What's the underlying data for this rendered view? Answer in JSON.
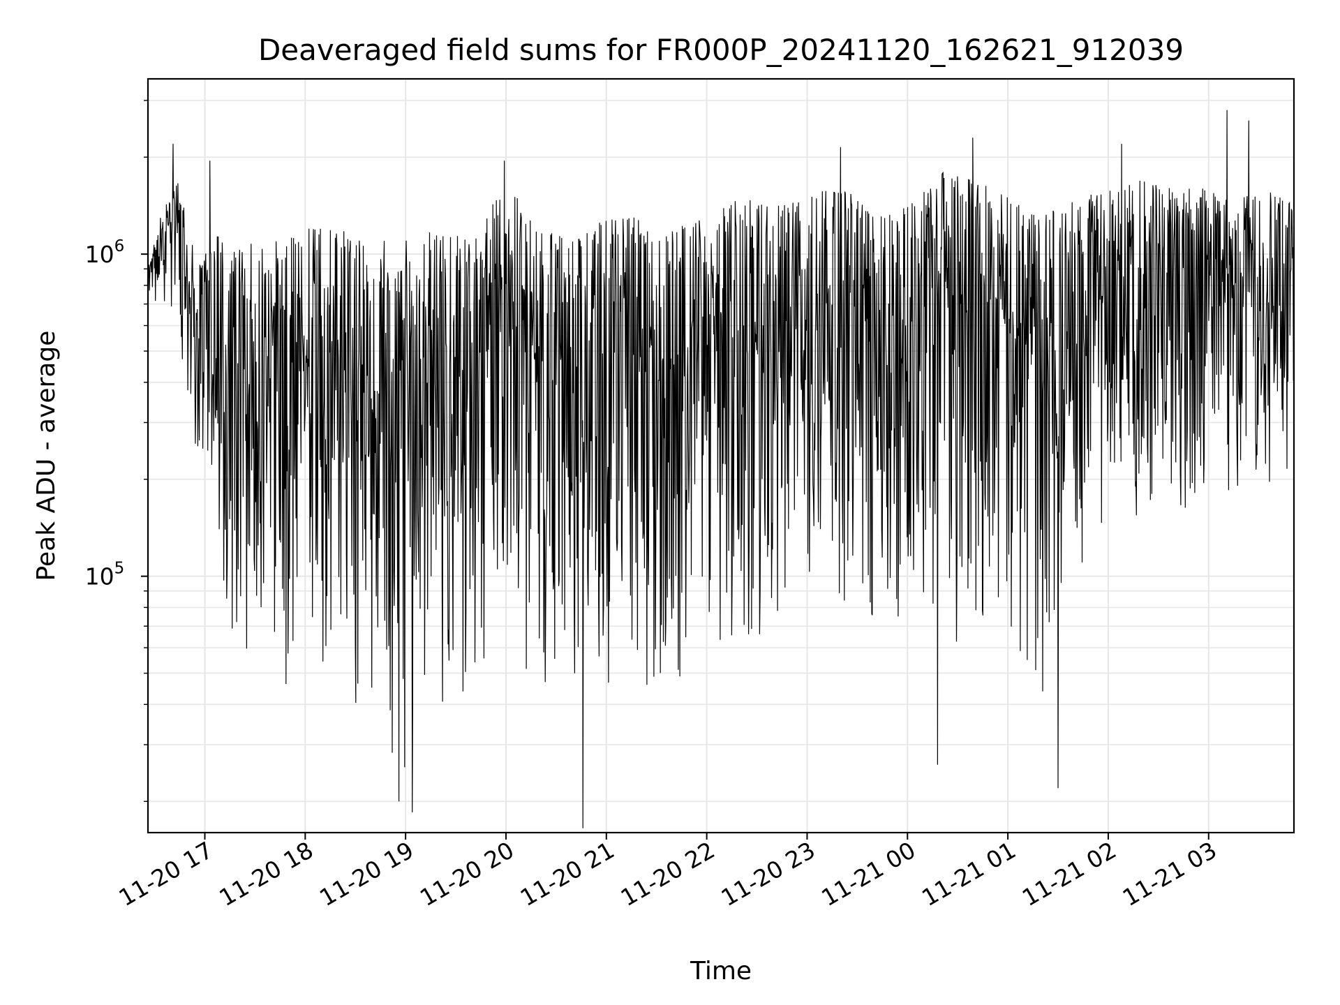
{
  "chart_data": {
    "type": "line",
    "title": "Deaveraged field sums for FR000P_20241120_162621_912039",
    "xlabel": "Time",
    "ylabel": "Peak ADU - average",
    "yscale": "log",
    "ylim": [
      16000,
      3500000
    ],
    "xlim": [
      "2024-11-20 16:26",
      "2024-11-21 03:51"
    ],
    "grid": true,
    "line_color": "#000000",
    "grid_color": "#e6e6e6",
    "x_ticks": [
      {
        "t": "2024-11-20 17:00",
        "label": "11-20 17"
      },
      {
        "t": "2024-11-20 18:00",
        "label": "11-20 18"
      },
      {
        "t": "2024-11-20 19:00",
        "label": "11-20 19"
      },
      {
        "t": "2024-11-20 20:00",
        "label": "11-20 20"
      },
      {
        "t": "2024-11-20 21:00",
        "label": "11-20 21"
      },
      {
        "t": "2024-11-20 22:00",
        "label": "11-20 22"
      },
      {
        "t": "2024-11-20 23:00",
        "label": "11-20 23"
      },
      {
        "t": "2024-11-21 00:00",
        "label": "11-21 00"
      },
      {
        "t": "2024-11-21 01:00",
        "label": "11-21 01"
      },
      {
        "t": "2024-11-21 02:00",
        "label": "11-21 02"
      },
      {
        "t": "2024-11-21 03:00",
        "label": "11-21 03"
      }
    ],
    "y_ticks": [
      {
        "value": 100000,
        "base": "10",
        "exp": "5"
      },
      {
        "value": 1000000,
        "base": "10",
        "exp": "6"
      }
    ],
    "envelope": [
      {
        "t": "2024-11-20 16:26",
        "low": 650000,
        "high": 900000
      },
      {
        "t": "2024-11-20 16:35",
        "low": 700000,
        "high": 1400000
      },
      {
        "t": "2024-11-20 16:45",
        "low": 500000,
        "high": 1800000
      },
      {
        "t": "2024-11-20 16:55",
        "low": 230000,
        "high": 900000
      },
      {
        "t": "2024-11-20 17:05",
        "low": 120000,
        "high": 1200000
      },
      {
        "t": "2024-11-20 17:15",
        "low": 60000,
        "high": 1000000
      },
      {
        "t": "2024-11-20 17:30",
        "low": 50000,
        "high": 1100000
      },
      {
        "t": "2024-11-20 17:45",
        "low": 45000,
        "high": 1100000
      },
      {
        "t": "2024-11-20 18:00",
        "low": 45000,
        "high": 1200000
      },
      {
        "t": "2024-11-20 18:20",
        "low": 40000,
        "high": 1200000
      },
      {
        "t": "2024-11-20 18:40",
        "low": 32000,
        "high": 1100000
      },
      {
        "t": "2024-11-20 19:00",
        "low": 24000,
        "high": 1100000
      },
      {
        "t": "2024-11-20 19:20",
        "low": 40000,
        "high": 1200000
      },
      {
        "t": "2024-11-20 19:40",
        "low": 35000,
        "high": 1100000
      },
      {
        "t": "2024-11-20 20:00",
        "low": 70000,
        "high": 1700000
      },
      {
        "t": "2024-11-20 20:20",
        "low": 40000,
        "high": 1200000
      },
      {
        "t": "2024-11-20 20:40",
        "low": 35000,
        "high": 1100000
      },
      {
        "t": "2024-11-20 21:00",
        "low": 45000,
        "high": 1300000
      },
      {
        "t": "2024-11-20 21:20",
        "low": 45000,
        "high": 1300000
      },
      {
        "t": "2024-11-20 21:40",
        "low": 40000,
        "high": 1200000
      },
      {
        "t": "2024-11-20 22:00",
        "low": 60000,
        "high": 1300000
      },
      {
        "t": "2024-11-20 22:20",
        "low": 60000,
        "high": 1500000
      },
      {
        "t": "2024-11-20 22:40",
        "low": 60000,
        "high": 1400000
      },
      {
        "t": "2024-11-20 23:00",
        "low": 100000,
        "high": 1500000
      },
      {
        "t": "2024-11-20 23:20",
        "low": 80000,
        "high": 1700000
      },
      {
        "t": "2024-11-20 23:40",
        "low": 55000,
        "high": 1300000
      },
      {
        "t": "2024-11-21 00:00",
        "low": 60000,
        "high": 1400000
      },
      {
        "t": "2024-11-21 00:20",
        "low": 45000,
        "high": 1800000
      },
      {
        "t": "2024-11-21 00:40",
        "low": 80000,
        "high": 1700000
      },
      {
        "t": "2024-11-21 01:00",
        "low": 50000,
        "high": 1500000
      },
      {
        "t": "2024-11-21 01:20",
        "low": 40000,
        "high": 1300000
      },
      {
        "t": "2024-11-21 01:40",
        "low": 100000,
        "high": 1500000
      },
      {
        "t": "2024-11-21 02:00",
        "low": 150000,
        "high": 1600000
      },
      {
        "t": "2024-11-21 02:20",
        "low": 150000,
        "high": 1700000
      },
      {
        "t": "2024-11-21 02:40",
        "low": 150000,
        "high": 1600000
      },
      {
        "t": "2024-11-21 03:00",
        "low": 180000,
        "high": 1600000
      },
      {
        "t": "2024-11-21 03:20",
        "low": 170000,
        "high": 1500000
      },
      {
        "t": "2024-11-21 03:40",
        "low": 180000,
        "high": 1600000
      },
      {
        "t": "2024-11-21 03:51",
        "low": 200000,
        "high": 1400000
      }
    ],
    "extremes": [
      {
        "t": "2024-11-20 16:41",
        "value": 2200000
      },
      {
        "t": "2024-11-20 17:03",
        "value": 1950000
      },
      {
        "t": "2024-11-20 18:56",
        "value": 20000
      },
      {
        "t": "2024-11-20 19:04",
        "value": 18500
      },
      {
        "t": "2024-11-20 19:59",
        "value": 1950000
      },
      {
        "t": "2024-11-20 20:46",
        "value": 16500
      },
      {
        "t": "2024-11-20 23:20",
        "value": 2150000
      },
      {
        "t": "2024-11-21 00:18",
        "value": 26000
      },
      {
        "t": "2024-11-21 00:39",
        "value": 2300000
      },
      {
        "t": "2024-11-21 01:30",
        "value": 22000
      },
      {
        "t": "2024-11-21 02:08",
        "value": 2200000
      },
      {
        "t": "2024-11-21 03:11",
        "value": 2800000
      },
      {
        "t": "2024-11-21 03:24",
        "value": 2600000
      }
    ]
  }
}
